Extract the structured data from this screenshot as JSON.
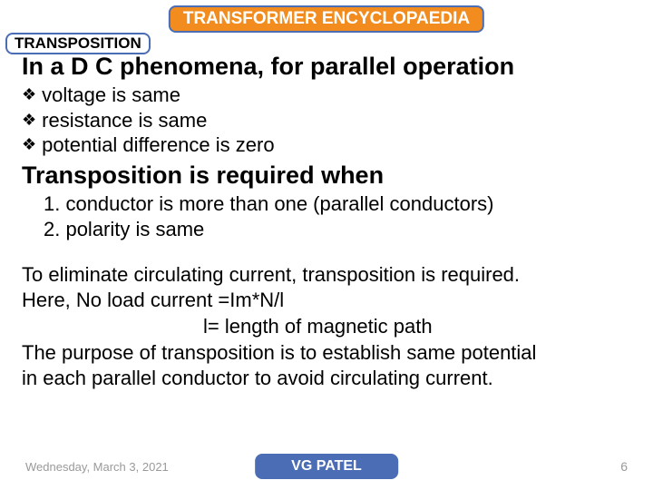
{
  "colors": {
    "title_bg": "#f28c1f",
    "border_blue": "#4a6db5",
    "author_bg": "#4a6db5",
    "text": "#000000",
    "footer_text": "#9a9a9a",
    "page_bg": "#ffffff"
  },
  "title": "TRANSFORMER ENCYCLOPAEDIA",
  "subtitle": "TRANSPOSITION",
  "heading1": "In a D C phenomena, for parallel operation",
  "bullets": [
    "voltage is same",
    "resistance is same",
    "potential difference is zero"
  ],
  "heading2": "Transposition is required when",
  "numbered": [
    "1. conductor is more than one (parallel conductors)",
    "2. polarity is same"
  ],
  "paragraph_lines": [
    "To eliminate circulating current, transposition is required.",
    "Here, No load current =Im*N/l",
    "l= length of magnetic path",
    "The purpose of transposition is to establish same potential",
    "in each parallel conductor to avoid circulating current."
  ],
  "indent_line_index": 2,
  "footer": {
    "date": "Wednesday, March 3, 2021",
    "author": "VG PATEL",
    "page": "6"
  },
  "typography": {
    "title_fontsize": 19,
    "subtitle_fontsize": 17,
    "heading_fontsize": 27,
    "body_fontsize": 22,
    "footer_fontsize": 13
  }
}
